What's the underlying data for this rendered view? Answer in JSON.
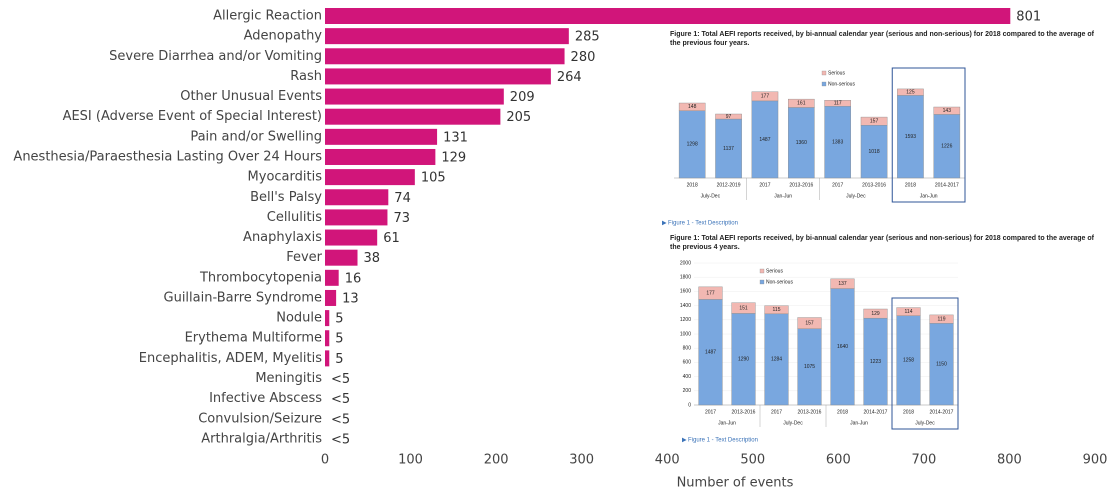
{
  "chart_data": [
    {
      "type": "barh",
      "categories": [
        "Allergic Reaction",
        "Adenopathy",
        "Severe Diarrhea and/or Vomiting",
        "Rash",
        "Other Unusual Events",
        "AESI (Adverse Event of Special Interest)",
        "Pain and/or Swelling",
        "Anesthesia/Paraesthesia Lasting Over 24 Hours",
        "Myocarditis",
        "Bell's Palsy",
        "Cellulitis",
        "Anaphylaxis",
        "Fever",
        "Thrombocytopenia",
        "Guillain-Barre Syndrome",
        "Nodule",
        "Erythema Multiforme",
        "Encephalitis, ADEM, Myelitis",
        "Meningitis",
        "Infective Abscess",
        "Convulsion/Seizure",
        "Arthralgia/Arthritis"
      ],
      "values": [
        801,
        285,
        280,
        264,
        209,
        205,
        131,
        129,
        105,
        74,
        73,
        61,
        38,
        16,
        13,
        5,
        5,
        5,
        null,
        null,
        null,
        null
      ],
      "value_labels": [
        "801",
        "285",
        "280",
        "264",
        "209",
        "205",
        "131",
        "129",
        "105",
        "74",
        "73",
        "61",
        "38",
        "16",
        "13",
        "5",
        "5",
        "5",
        "<5",
        "<5",
        "<5",
        "<5"
      ],
      "color": "#d1157a",
      "xlabel": "Number of events",
      "xlim": [
        0,
        900
      ],
      "xticks": [
        0,
        100,
        200,
        300,
        400,
        500,
        600,
        700,
        800,
        900
      ]
    },
    {
      "type": "stacked_bar",
      "title": "Figure 1: Total AEFI reports received, by bi-annual calendar year (serious and non-serious) for 2018 compared to the average of the previous four years.",
      "categories": [
        "2018",
        "2012-2019",
        "2017",
        "2013-2016",
        "2017",
        "2013-2016",
        "2018",
        "2014-2017"
      ],
      "groups": [
        "July-Dec",
        "Jan-Jun",
        "July-Dec",
        "Jan-Jun"
      ],
      "series": [
        {
          "name": "Serious",
          "color": "#f2b8b2",
          "values": [
            148,
            97,
            177,
            161,
            117,
            157,
            125,
            143
          ]
        },
        {
          "name": "Non-serious",
          "color": "#79a7df",
          "values": [
            1298,
            1137,
            1487,
            1360,
            1383,
            1018,
            1593,
            1226
          ]
        }
      ],
      "link_text": "Figure 1 - Text Description"
    },
    {
      "type": "stacked_bar",
      "title": "Figure 1: Total AEFI reports received, by bi-annual calendar year (serious and non-serious) for 2018 compared to the average of the previous 4 years.",
      "categories": [
        "2017",
        "2013-2016",
        "2017",
        "2013-2016",
        "2018",
        "2014-2017",
        "2018",
        "2014-2017"
      ],
      "groups": [
        "Jan-Jun",
        "July-Dec",
        "Jan-Jun",
        "July-Dec"
      ],
      "series": [
        {
          "name": "Serious",
          "color": "#f2b8b2",
          "values": [
            177,
            151,
            115,
            157,
            137,
            129,
            114,
            119
          ]
        },
        {
          "name": "Non-serious",
          "color": "#79a7df",
          "values": [
            1487,
            1290,
            1284,
            1075,
            1640,
            1223,
            1258,
            1150
          ]
        }
      ],
      "ylim": [
        0,
        2000
      ],
      "yticks": [
        0,
        200,
        400,
        600,
        800,
        1000,
        1200,
        1400,
        1600,
        1800,
        2000
      ],
      "link_text": "Figure 1 - Text Description"
    }
  ]
}
